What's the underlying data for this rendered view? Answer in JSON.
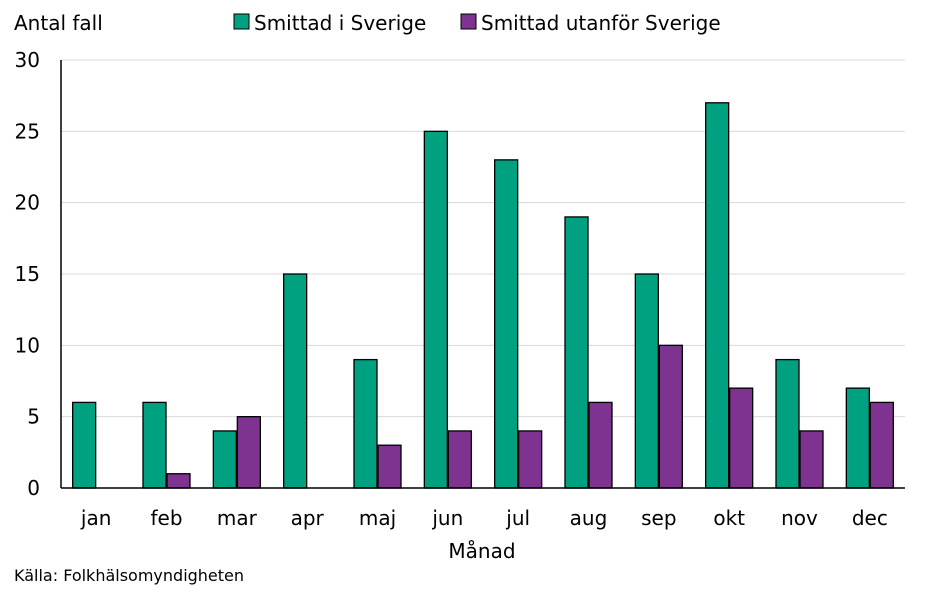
{
  "chart_data": {
    "type": "bar",
    "title": "",
    "ylabel": "Antal fall",
    "xlabel": "Månad",
    "ylim": [
      0,
      30
    ],
    "yticks": [
      0,
      5,
      10,
      15,
      20,
      25,
      30
    ],
    "grid": true,
    "legend_position": "top-center",
    "categories": [
      "jan",
      "feb",
      "mar",
      "apr",
      "maj",
      "jun",
      "jul",
      "aug",
      "sep",
      "okt",
      "nov",
      "dec"
    ],
    "series": [
      {
        "name": "Smittad i Sverige",
        "color": "#00A180",
        "values": [
          6,
          6,
          4,
          15,
          9,
          25,
          23,
          19,
          15,
          27,
          9,
          7
        ]
      },
      {
        "name": "Smittad utanför Sverige",
        "color": "#7E3391",
        "values": [
          0,
          1,
          5,
          0,
          3,
          4,
          4,
          6,
          10,
          7,
          4,
          6
        ]
      }
    ]
  },
  "source": "Källa: Folkhälsomyndigheten"
}
